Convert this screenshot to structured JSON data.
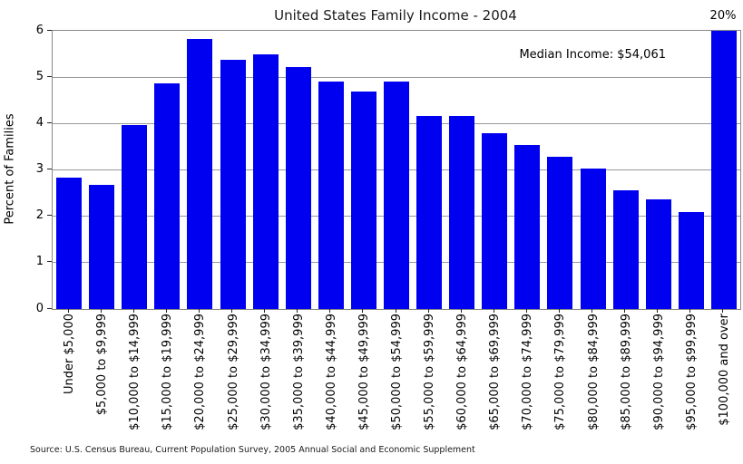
{
  "annotations": {
    "top_right_percent": "20%",
    "median_income": "Median Income: $54,061"
  },
  "source_note": "Source: U.S. Census Bureau, Current Population Survey, 2005 Annual Social and Economic Supplement",
  "colors": {
    "bar": "#0000f0",
    "grid": "#999999",
    "spine": "#888888",
    "text": "#000000"
  },
  "chart_data": {
    "type": "bar",
    "title": "United States Family Income - 2004",
    "xlabel": "",
    "ylabel": "Percent of Families",
    "ylim": [
      0,
      6
    ],
    "yticks": [
      0,
      1,
      2,
      3,
      4,
      5,
      6
    ],
    "grid": true,
    "legend": "none",
    "categories": [
      "Under $5,000",
      "$5,000 to $9,999",
      "$10,000 to $14,999",
      "$15,000 to $19,999",
      "$20,000 to $24,999",
      "$25,000 to $29,999",
      "$30,000 to $34,999",
      "$35,000 to $39,999",
      "$40,000 to $44,999",
      "$45,000 to $49,999",
      "$50,000 to $54,999",
      "$55,000 to $59,999",
      "$60,000 to $64,999",
      "$65,000 to $69,999",
      "$70,000 to $74,999",
      "$75,000 to $79,999",
      "$80,000 to $84,999",
      "$85,000 to $89,999",
      "$90,000 to $94,999",
      "$95,000 to $99,999",
      "$100,000 and over"
    ],
    "values": [
      2.84,
      2.68,
      3.96,
      4.87,
      5.82,
      5.37,
      5.49,
      5.21,
      4.9,
      4.7,
      4.9,
      4.16,
      4.17,
      3.8,
      3.53,
      3.28,
      3.02,
      2.57,
      2.37,
      2.1,
      20
    ],
    "clipped_last_bar": true,
    "clipped_last_bar_label": "20%"
  }
}
